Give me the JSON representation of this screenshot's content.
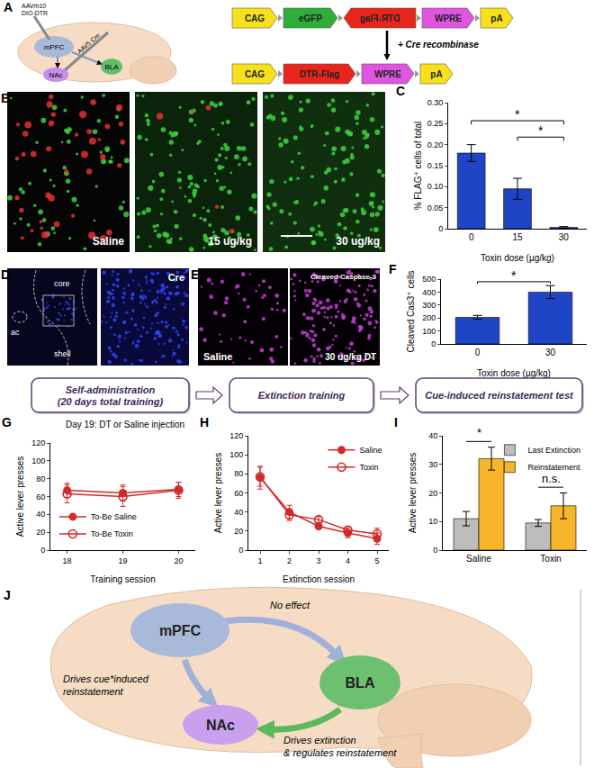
{
  "panel_letters": [
    "A",
    "B",
    "C",
    "D",
    "E",
    "F",
    "G",
    "H",
    "I",
    "J"
  ],
  "panel_A": {
    "injection_1": [
      "AAVrh10",
      "DIO-DTR"
    ],
    "injection_2": "AAV5 Cre",
    "regions": [
      "mPFC",
      "NAc",
      "BLA"
    ],
    "construct_before": [
      "CAG",
      "eGFP",
      "DTR-Flag",
      "WPRE",
      "pA"
    ],
    "construct_after": [
      "CAG",
      "DTR-Flag",
      "WPRE",
      "pA"
    ],
    "recombination": "+ Cre recombinase"
  },
  "panel_B": {
    "images": [
      "Saline",
      "15 ug/kg",
      "30 ug/kg"
    ]
  },
  "panel_D": {
    "region_labels": [
      "core",
      "ac",
      "shell"
    ],
    "stain": "Cre"
  },
  "panel_E": {
    "images": [
      "Saline",
      "30 ug/kg DT"
    ],
    "stain": "Cleaved Caspase-3"
  },
  "timeline": [
    [
      "Self-administration",
      "(20 days total training)"
    ],
    [
      "Extinction training"
    ],
    [
      "Cue-induced reinstatement test"
    ]
  ],
  "panel_J": {
    "regions": [
      "mPFC",
      "BLA",
      "NAc"
    ],
    "edges": [
      {
        "from": "mPFC",
        "to": "BLA",
        "label": [
          "No effect"
        ]
      },
      {
        "from": "mPFC",
        "to": "NAc",
        "label": [
          "Drives cue*induced",
          "reinstatement"
        ]
      },
      {
        "from": "BLA",
        "to": "NAc",
        "label": [
          "Drives extinction",
          "& regulates reinstatement"
        ]
      }
    ]
  },
  "chart_data": [
    {
      "type": "bar",
      "categories": [
        "0",
        "15",
        "30"
      ],
      "values": [
        0.18,
        0.095,
        0.003
      ],
      "errors": [
        0.02,
        0.025,
        0.002
      ],
      "color": "#2044c6",
      "xlabel": "Toxin dose (µg/kg)",
      "ylabel": "% FLAG⁺ cells of total",
      "ylim": [
        0,
        0.3
      ],
      "yticks": [
        0,
        0.05,
        {
          "value": 0.1,
          "label": "0.10"
        },
        0.15,
        {
          "value": 0.2,
          "label": "0.20"
        },
        0.25,
        {
          "value": 0.3,
          "label": "0.30"
        }
      ],
      "grid": false,
      "significance": [
        {
          "from": "15",
          "to": "30",
          "label": "*"
        },
        {
          "from": "0",
          "to": "30",
          "label": "*"
        }
      ]
    },
    {
      "type": "bar",
      "categories": [
        "0",
        "30"
      ],
      "values": [
        205,
        400
      ],
      "errors": [
        15,
        50
      ],
      "color": "#2044c6",
      "xlabel": "Toxin dose (µg/kg)",
      "ylabel": "Cleaved Cas3⁺ cells",
      "ylim": [
        0,
        500
      ],
      "yticks": [
        0,
        100,
        200,
        300,
        400,
        500
      ],
      "grid": false,
      "significance": [
        {
          "from": "0",
          "to": "30",
          "label": "*"
        }
      ]
    },
    {
      "type": "line",
      "title": "Day 19: DT or Saline injection",
      "x": [
        18,
        19,
        20
      ],
      "xlim": [
        17.7,
        20.3
      ],
      "xticks": [
        18,
        19,
        20
      ],
      "xlabel": "Training session",
      "ylabel": "Active lever presses",
      "ylim": [
        0,
        120
      ],
      "yticks": [
        0,
        20,
        40,
        60,
        80,
        100,
        120
      ],
      "grid": false,
      "legend": "bottom left",
      "series": [
        {
          "name": "To-Be Saline",
          "color": "#d42a2a",
          "marker": "filled",
          "values": [
            67,
            64,
            68
          ],
          "errors": [
            8,
            9,
            8
          ]
        },
        {
          "name": "To-Be Toxin",
          "color": "#d42a2a",
          "marker": "open",
          "values": [
            63,
            60,
            67
          ],
          "errors": [
            10,
            11,
            9
          ]
        }
      ]
    },
    {
      "type": "line",
      "x": [
        1,
        2,
        3,
        4,
        5
      ],
      "xlim": [
        0.6,
        5.4
      ],
      "xticks": [
        1,
        2,
        3,
        4,
        5
      ],
      "xlabel": "Extinction session",
      "ylabel": "Active lever presses",
      "ylim": [
        0,
        120
      ],
      "yticks": [
        0,
        20,
        40,
        60,
        80,
        100,
        120
      ],
      "grid": false,
      "legend": "top right",
      "series": [
        {
          "name": "Saline",
          "color": "#d42a2a",
          "marker": "filled",
          "values": [
            76,
            40,
            25,
            18,
            12
          ],
          "errors": [
            12,
            7,
            3,
            5,
            6
          ]
        },
        {
          "name": "Toxin",
          "color": "#d42a2a",
          "marker": "open",
          "values": [
            77,
            37,
            32,
            21,
            17
          ],
          "errors": [
            10,
            6,
            3,
            4,
            6
          ]
        }
      ]
    },
    {
      "type": "bar",
      "categories": [
        "Saline",
        "Toxin"
      ],
      "ylabel": "Active lever presses",
      "ylim": [
        0,
        40
      ],
      "yticks": [
        0,
        10,
        20,
        30,
        40
      ],
      "grid": false,
      "legend": "top right",
      "series": [
        {
          "name": "Last Extinction",
          "color": "#bdbdbd",
          "values": [
            11,
            9.5
          ],
          "errors": [
            2.5,
            1.2
          ]
        },
        {
          "name": "Reinstatement",
          "color": "#f7b52c",
          "values": [
            32,
            15.5
          ],
          "errors": [
            4,
            4.5
          ]
        }
      ],
      "significance": [
        {
          "category": "Saline",
          "label": "*"
        },
        {
          "category": "Toxin",
          "label": "n.s."
        }
      ]
    }
  ]
}
